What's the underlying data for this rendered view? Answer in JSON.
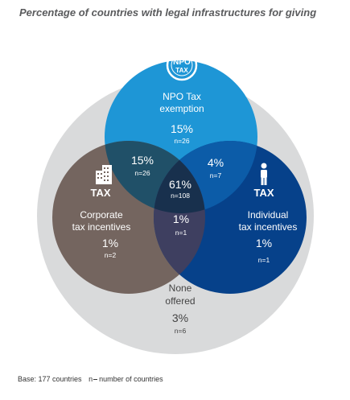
{
  "title": "Percentage of countries with legal infrastructures for giving",
  "colors": {
    "outer": "#d9dadb",
    "npo": "#1e96d6",
    "individual": "#06418a",
    "corporate": "#74655f",
    "npo_corporate": "#205068",
    "npo_individual": "#0c5ca8",
    "corporate_individual": "#3e3f60",
    "center": "#18304d",
    "text_light": "#ffffff",
    "text_dark": "#444444"
  },
  "icons": {
    "npo": "npo-tax-badge-icon",
    "corporate": "building-tax-icon",
    "individual": "person-tax-icon"
  },
  "icon_labels": {
    "npo_top": "NPO",
    "npo_bottom": "TAX",
    "tax": "TAX"
  },
  "regions": {
    "npo": {
      "line1": "NPO Tax",
      "line2": "exemption",
      "pct": "15%",
      "n": "n=26"
    },
    "npo_corporate": {
      "pct": "15%",
      "n": "n=26"
    },
    "npo_individual": {
      "pct": "4%",
      "n": "n=7"
    },
    "center": {
      "pct": "61%",
      "n": "n=108"
    },
    "corporate": {
      "line1": "Corporate",
      "line2": "tax incentives",
      "pct": "1%",
      "n": "n=2"
    },
    "corporate_individual": {
      "pct": "1%",
      "n": "n=1"
    },
    "individual": {
      "line1": "Individual",
      "line2": "tax incentives",
      "pct": "1%",
      "n": "n=1"
    },
    "none": {
      "line1": "None",
      "line2": "offered",
      "pct": "3%",
      "n": "n=6"
    }
  },
  "footnote": {
    "base": "Base: 177 countries",
    "key_n": "n",
    "key_text": "number of countries"
  }
}
